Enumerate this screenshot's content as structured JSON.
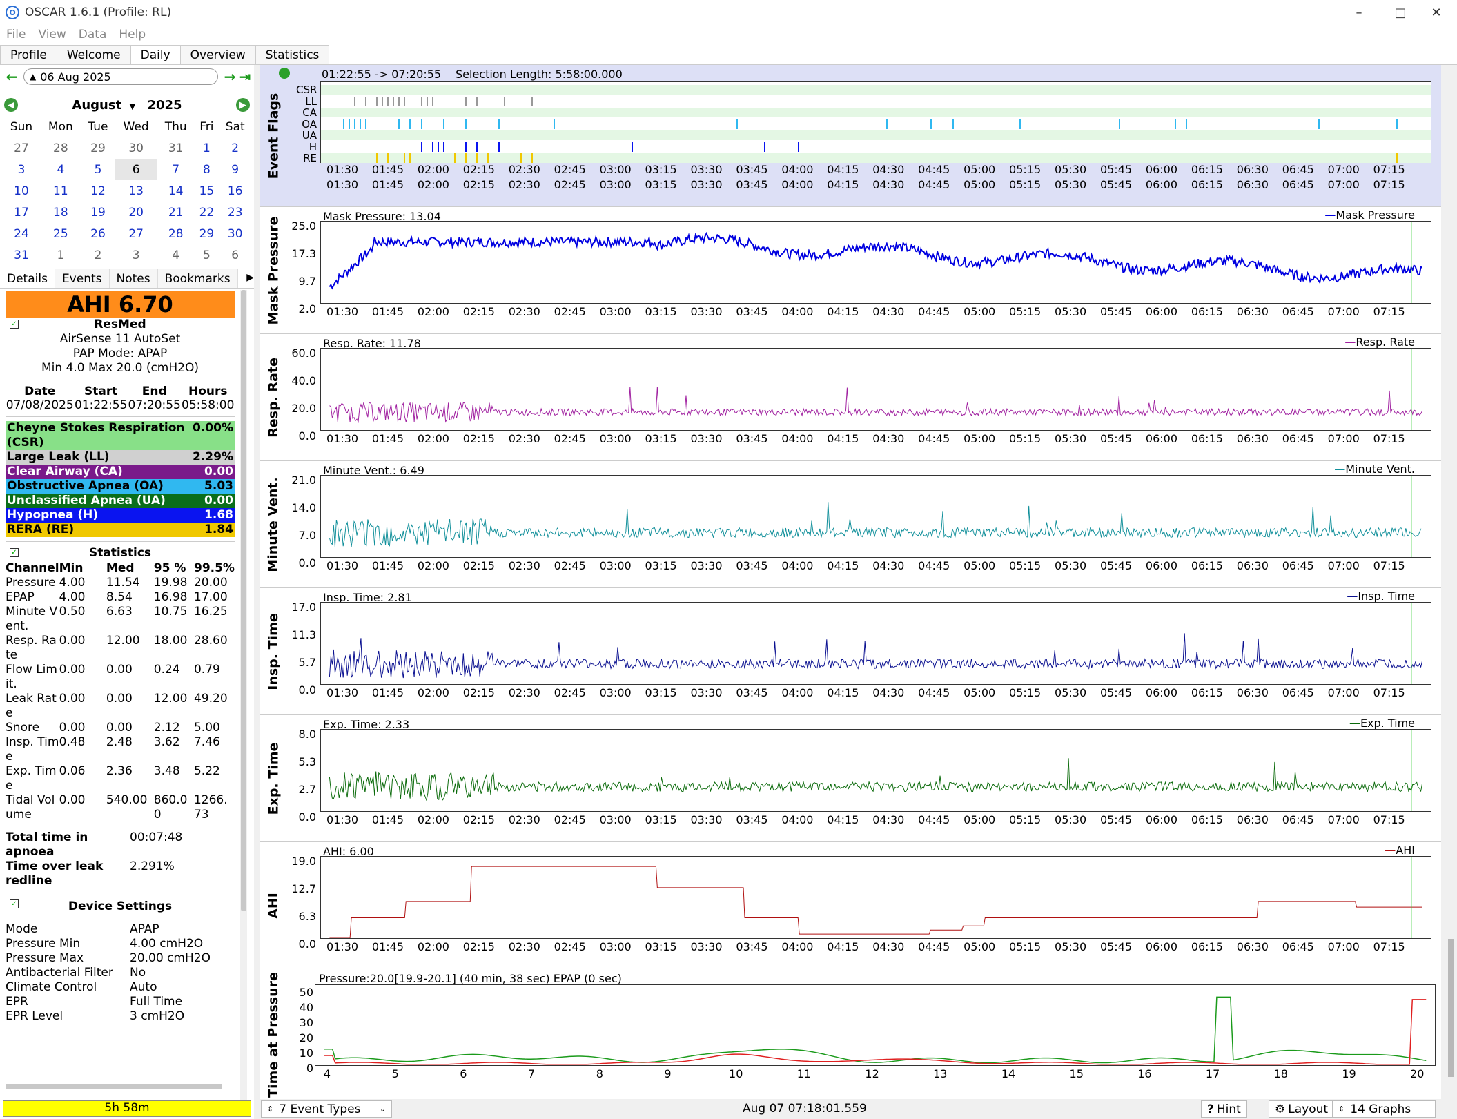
{
  "app": {
    "title": "OSCAR 1.6.1 (Profile: RL)"
  },
  "menu": [
    "File",
    "View",
    "Data",
    "Help"
  ],
  "tabs": [
    "Profile",
    "Welcome",
    "Daily",
    "Overview",
    "Statistics"
  ],
  "date_nav": {
    "date": "06 Aug 2025"
  },
  "calendar": {
    "month": "August",
    "year": "2025",
    "weekdays": [
      "Sun",
      "Mon",
      "Tue",
      "Wed",
      "Thu",
      "Fri",
      "Sat"
    ],
    "weeks": [
      [
        "27",
        "28",
        "29",
        "30",
        "31",
        "1",
        "2"
      ],
      [
        "3",
        "4",
        "5",
        "6",
        "7",
        "8",
        "9"
      ],
      [
        "10",
        "11",
        "12",
        "13",
        "14",
        "15",
        "16"
      ],
      [
        "17",
        "18",
        "19",
        "20",
        "21",
        "22",
        "23"
      ],
      [
        "24",
        "25",
        "26",
        "27",
        "28",
        "29",
        "30"
      ],
      [
        "31",
        "1",
        "2",
        "3",
        "4",
        "5",
        "6"
      ]
    ]
  },
  "detail_tabs": [
    "Details",
    "Events",
    "Notes",
    "Bookmarks"
  ],
  "summary": {
    "ahi": "AHI 6.70",
    "brand": "ResMed",
    "model": "AirSense 11 AutoSet",
    "mode": "PAP Mode: APAP",
    "range": "Min 4.0 Max 20.0 (cmH2O)",
    "date_h": "Date",
    "start_h": "Start",
    "end_h": "End",
    "hours_h": "Hours",
    "date": "07/08/2025",
    "start": "01:22:55",
    "end": "07:20:55",
    "hours": "05:58:00"
  },
  "events": [
    {
      "label": "Cheyne Stokes Respiration (CSR)",
      "value": "0.00%",
      "bg": "#88e088",
      "fg": "#000"
    },
    {
      "label": "Large Leak (LL)",
      "value": "2.29%",
      "bg": "#d0d0d0",
      "fg": "#000"
    },
    {
      "label": "Clear Airway (CA)",
      "value": "0.00",
      "bg": "#7a1a8a",
      "fg": "#fff"
    },
    {
      "label": "Obstructive Apnea (OA)",
      "value": "5.03",
      "bg": "#30b8f0",
      "fg": "#000"
    },
    {
      "label": "Unclassified Apnea (UA)",
      "value": "0.00",
      "bg": "#0a6e1a",
      "fg": "#fff"
    },
    {
      "label": "Hypopnea (H)",
      "value": "1.68",
      "bg": "#0a14f0",
      "fg": "#fff"
    },
    {
      "label": "RERA (RE)",
      "value": "1.84",
      "bg": "#f0c800",
      "fg": "#000"
    }
  ],
  "statistics": {
    "title": "Statistics",
    "headers": [
      "Channel",
      "Min",
      "Med",
      "95 %",
      "99.5%"
    ],
    "rows": [
      [
        "Pressure",
        "4.00",
        "11.54",
        "19.98",
        "20.00"
      ],
      [
        "EPAP",
        "4.00",
        "8.54",
        "16.98",
        "17.00"
      ],
      [
        "Minute Vent.",
        "0.50",
        "6.63",
        "10.75",
        "16.25"
      ],
      [
        "Resp. Rate",
        "0.00",
        "12.00",
        "18.00",
        "28.60"
      ],
      [
        "Flow Limit.",
        "0.00",
        "0.00",
        "0.24",
        "0.79"
      ],
      [
        "Leak Rate",
        "0.00",
        "0.00",
        "12.00",
        "49.20"
      ],
      [
        "Snore",
        "0.00",
        "0.00",
        "2.12",
        "5.00"
      ],
      [
        "Insp. Time",
        "0.48",
        "2.48",
        "3.62",
        "7.46"
      ],
      [
        "Exp. Time",
        "0.06",
        "2.36",
        "3.48",
        "5.22"
      ],
      [
        "Tidal Volume",
        "0.00",
        "540.00",
        "860.00",
        "1266.73"
      ]
    ],
    "apnoea_label": "Total time in apnoea",
    "apnoea_value": "00:07:48",
    "leak_label": "Time over leak redline",
    "leak_value": "2.291%"
  },
  "device_settings": {
    "title": "Device Settings",
    "rows": [
      [
        "Mode",
        "APAP"
      ],
      [
        "Pressure Min",
        "4.00 cmH2O"
      ],
      [
        "Pressure Max",
        "20.00 cmH2O"
      ],
      [
        "Antibacterial Filter",
        "No"
      ],
      [
        "Climate Control",
        "Auto"
      ],
      [
        "EPR",
        "Full Time"
      ],
      [
        "EPR Level",
        "3 cmH2O"
      ]
    ]
  },
  "usage_bar": "5h 58m",
  "time_ticks": [
    "01:30",
    "01:45",
    "02:00",
    "02:15",
    "02:30",
    "02:45",
    "03:00",
    "03:15",
    "03:30",
    "03:45",
    "04:00",
    "04:15",
    "04:30",
    "04:45",
    "05:00",
    "05:15",
    "05:30",
    "05:45",
    "06:00",
    "06:15",
    "06:30",
    "06:45",
    "07:00",
    "07:15"
  ],
  "event_flags": {
    "ylabel": "Event Flags",
    "range": "01:22:55 -> 07:20:55",
    "selection": "Selection Length: 5:58:00.000",
    "rows": [
      "CSR",
      "LL",
      "CA",
      "OA",
      "UA",
      "H",
      "RE"
    ]
  },
  "graphs": [
    {
      "ylabel": "Mask Pressure",
      "title": "Mask Pressure: 13.04",
      "legend": "Mask Pressure",
      "color": "#0000e0",
      "yticks": [
        "25.0",
        "17.3",
        "9.7",
        "2.0"
      ]
    },
    {
      "ylabel": "Resp. Rate",
      "title": "Resp. Rate: 11.78",
      "legend": "Resp. Rate",
      "color": "#a020a0",
      "yticks": [
        "60.0",
        "40.0",
        "20.0",
        "0.0"
      ]
    },
    {
      "ylabel": "Minute Vent.",
      "title": "Minute Vent.: 6.49",
      "legend": "Minute Vent.",
      "color": "#108f9a",
      "yticks": [
        "21.0",
        "14.0",
        "7.0",
        "0.0"
      ]
    },
    {
      "ylabel": "Insp. Time",
      "title": "Insp. Time: 2.81",
      "legend": "Insp. Time",
      "color": "#0a1090",
      "yticks": [
        "17.0",
        "11.3",
        "5.7",
        "0.0"
      ]
    },
    {
      "ylabel": "Exp. Time",
      "title": "Exp. Time: 2.33",
      "legend": "Exp. Time",
      "color": "#0a6a0a",
      "yticks": [
        "8.0",
        "5.3",
        "2.7",
        "0.0"
      ]
    },
    {
      "ylabel": "AHI",
      "title": "AHI: 6.00",
      "legend": "AHI",
      "color": "#b01010",
      "yticks": [
        "19.0",
        "12.7",
        "6.3",
        "0.0"
      ]
    }
  ],
  "pressure_hist": {
    "ylabel": "Time at Pressure",
    "title": "Pressure:20.0[19.9-20.1] (40 min, 38 sec)   EPAP (0 sec)",
    "yticks": [
      "50",
      "40",
      "30",
      "20",
      "10",
      "0"
    ],
    "xticks": [
      "4",
      "5",
      "6",
      "7",
      "8",
      "9",
      "10",
      "11",
      "12",
      "13",
      "14",
      "15",
      "16",
      "17",
      "18",
      "19",
      "20"
    ]
  },
  "statusbar": {
    "event_types": "7 Event Types",
    "timestamp": "Aug 07 07:18:01.559",
    "hint": "Hint",
    "layout": "Layout",
    "graphs": "14 Graphs"
  }
}
